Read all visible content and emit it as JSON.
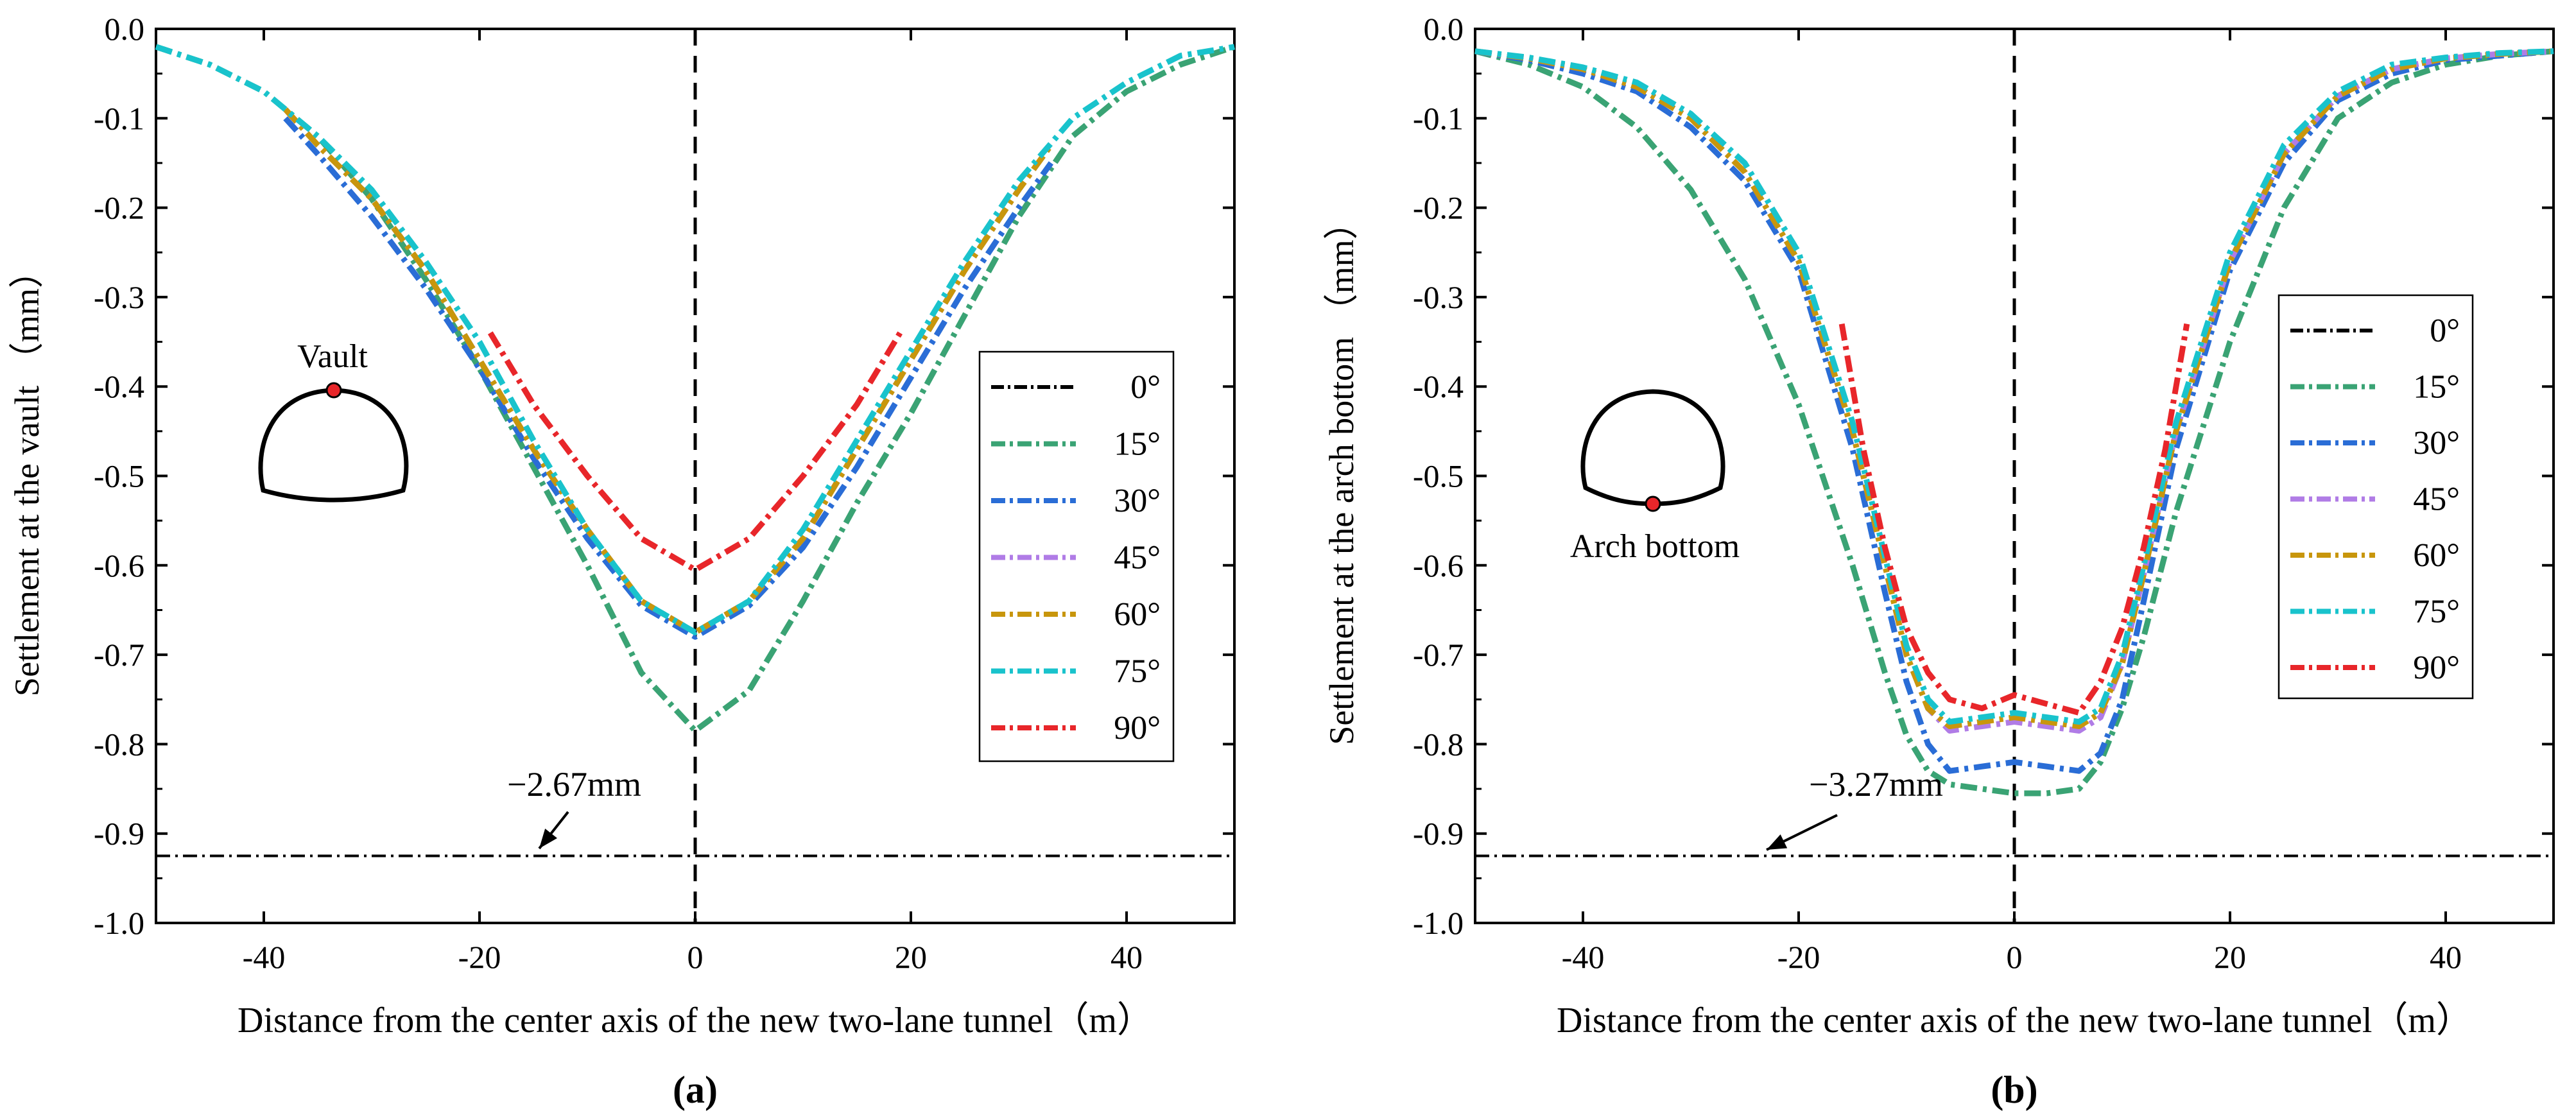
{
  "chart_data": [
    {
      "panel_label": "(a)",
      "type": "line",
      "xlabel": "Distance from the center axis of the new two-lane tunnel（m）",
      "ylabel": "Settlement at the vault （mm）",
      "xlim": [
        -50,
        50
      ],
      "ylim": [
        -1.0,
        0.0
      ],
      "xticks": [
        -40,
        -20,
        0,
        20,
        40
      ],
      "yticks": [
        0.0,
        -0.1,
        -0.2,
        -0.3,
        -0.4,
        -0.5,
        -0.6,
        -0.7,
        -0.8,
        -0.9,
        -1.0
      ],
      "ytick_labels": [
        "0.0",
        "-0.1",
        "-0.2",
        "-0.3",
        "-0.4",
        "-0.5",
        "-0.6",
        "-0.7",
        "-0.8",
        "-0.9",
        "-1.0"
      ],
      "legend_position": "right",
      "inset_label": "Vault",
      "threshold": {
        "value": -0.925,
        "label": "−2.67mm",
        "color": "#000000"
      },
      "series": [
        {
          "name": "0°",
          "color": "#000000",
          "x": [
            -50,
            50
          ],
          "y": [
            -0.925,
            -0.925
          ]
        },
        {
          "name": "15°",
          "color": "#3aa374",
          "x": [
            -50,
            -45,
            -40,
            -35,
            -30,
            -25,
            -20,
            -15,
            -10,
            -5,
            0,
            5,
            10,
            15,
            20,
            25,
            30,
            35,
            40,
            45,
            50
          ],
          "y": [
            -0.02,
            -0.04,
            -0.07,
            -0.12,
            -0.19,
            -0.28,
            -0.38,
            -0.49,
            -0.6,
            -0.72,
            -0.785,
            -0.74,
            -0.64,
            -0.53,
            -0.43,
            -0.32,
            -0.21,
            -0.12,
            -0.07,
            -0.04,
            -0.02
          ]
        },
        {
          "name": "30°",
          "color": "#2a6dd6",
          "x": [
            -38,
            -35,
            -30,
            -25,
            -20,
            -15,
            -10,
            -5,
            0,
            5,
            10,
            15,
            20,
            25,
            30,
            33
          ],
          "y": [
            -0.1,
            -0.14,
            -0.21,
            -0.29,
            -0.38,
            -0.48,
            -0.57,
            -0.645,
            -0.68,
            -0.645,
            -0.58,
            -0.49,
            -0.39,
            -0.29,
            -0.2,
            -0.15
          ]
        },
        {
          "name": "45°",
          "color": "#b07ce6",
          "x": [
            -38,
            -35,
            -30,
            -25,
            -20,
            -15,
            -10,
            -5,
            0,
            5,
            10,
            15,
            20,
            25,
            30,
            33
          ],
          "y": [
            -0.09,
            -0.13,
            -0.19,
            -0.27,
            -0.37,
            -0.47,
            -0.56,
            -0.64,
            -0.675,
            -0.64,
            -0.57,
            -0.47,
            -0.37,
            -0.27,
            -0.18,
            -0.13
          ]
        },
        {
          "name": "60°",
          "color": "#c8960c",
          "x": [
            -38,
            -35,
            -30,
            -25,
            -20,
            -15,
            -10,
            -5,
            0,
            5,
            10,
            15,
            20,
            25,
            30,
            33
          ],
          "y": [
            -0.09,
            -0.13,
            -0.19,
            -0.27,
            -0.37,
            -0.47,
            -0.56,
            -0.64,
            -0.675,
            -0.64,
            -0.57,
            -0.47,
            -0.37,
            -0.27,
            -0.18,
            -0.13
          ]
        },
        {
          "name": "75°",
          "color": "#19c3cc",
          "x": [
            -50,
            -45,
            -40,
            -35,
            -30,
            -25,
            -20,
            -15,
            -10,
            -5,
            0,
            5,
            10,
            15,
            20,
            25,
            30,
            35,
            40,
            45,
            50
          ],
          "y": [
            -0.02,
            -0.04,
            -0.07,
            -0.12,
            -0.18,
            -0.26,
            -0.35,
            -0.46,
            -0.56,
            -0.64,
            -0.675,
            -0.64,
            -0.56,
            -0.46,
            -0.36,
            -0.26,
            -0.17,
            -0.1,
            -0.06,
            -0.03,
            -0.02
          ]
        },
        {
          "name": "90°",
          "color": "#e8262a",
          "x": [
            -19,
            -15,
            -10,
            -5,
            0,
            5,
            10,
            15,
            19
          ],
          "y": [
            -0.34,
            -0.42,
            -0.5,
            -0.57,
            -0.605,
            -0.57,
            -0.5,
            -0.42,
            -0.34
          ]
        }
      ]
    },
    {
      "panel_label": "(b)",
      "type": "line",
      "xlabel": "Distance from the center axis of the new two-lane tunnel（m）",
      "ylabel": "Settlement at the arch bottom （mm）",
      "xlim": [
        -50,
        50
      ],
      "ylim": [
        -1.0,
        0.0
      ],
      "xticks": [
        -40,
        -20,
        0,
        20,
        40
      ],
      "yticks": [
        0.0,
        -0.1,
        -0.2,
        -0.3,
        -0.4,
        -0.5,
        -0.6,
        -0.7,
        -0.8,
        -0.9,
        -1.0
      ],
      "ytick_labels": [
        "0.0",
        "-0.1",
        "-0.2",
        "-0.3",
        "-0.4",
        "-0.5",
        "-0.6",
        "-0.7",
        "-0.8",
        "-0.9",
        "-1.0"
      ],
      "legend_position": "right",
      "inset_label": "Arch bottom",
      "threshold": {
        "value": -0.925,
        "label": "−3.27mm",
        "color": "#000000"
      },
      "series": [
        {
          "name": "0°",
          "color": "#000000",
          "x": [
            -50,
            50
          ],
          "y": [
            -0.925,
            -0.925
          ]
        },
        {
          "name": "15°",
          "color": "#3aa374",
          "x": [
            -50,
            -45,
            -40,
            -35,
            -30,
            -25,
            -20,
            -15,
            -12,
            -10,
            -8,
            -6,
            -3,
            0,
            3,
            6,
            8,
            10,
            12,
            15,
            20,
            25,
            30,
            35,
            40,
            45,
            50
          ],
          "y": [
            -0.025,
            -0.04,
            -0.065,
            -0.11,
            -0.18,
            -0.28,
            -0.42,
            -0.6,
            -0.72,
            -0.79,
            -0.83,
            -0.845,
            -0.85,
            -0.855,
            -0.855,
            -0.85,
            -0.82,
            -0.76,
            -0.68,
            -0.54,
            -0.35,
            -0.2,
            -0.1,
            -0.06,
            -0.04,
            -0.03,
            -0.025
          ]
        },
        {
          "name": "30°",
          "color": "#2a6dd6",
          "x": [
            -50,
            -45,
            -40,
            -35,
            -30,
            -25,
            -20,
            -15,
            -12,
            -10,
            -8,
            -6,
            -3,
            0,
            3,
            6,
            8,
            10,
            12,
            15,
            20,
            25,
            30,
            35,
            40,
            45,
            50
          ],
          "y": [
            -0.025,
            -0.035,
            -0.05,
            -0.07,
            -0.11,
            -0.17,
            -0.27,
            -0.47,
            -0.63,
            -0.73,
            -0.8,
            -0.83,
            -0.825,
            -0.82,
            -0.825,
            -0.83,
            -0.81,
            -0.75,
            -0.64,
            -0.47,
            -0.27,
            -0.15,
            -0.08,
            -0.05,
            -0.035,
            -0.03,
            -0.025
          ]
        },
        {
          "name": "45°",
          "color": "#b07ce6",
          "x": [
            -50,
            -45,
            -40,
            -35,
            -30,
            -25,
            -20,
            -15,
            -12,
            -10,
            -8,
            -6,
            -3,
            0,
            3,
            6,
            8,
            10,
            12,
            15,
            20,
            25,
            30,
            35,
            40,
            45,
            50
          ],
          "y": [
            -0.025,
            -0.033,
            -0.045,
            -0.065,
            -0.1,
            -0.16,
            -0.26,
            -0.45,
            -0.6,
            -0.7,
            -0.76,
            -0.785,
            -0.78,
            -0.775,
            -0.78,
            -0.785,
            -0.77,
            -0.71,
            -0.61,
            -0.45,
            -0.26,
            -0.14,
            -0.075,
            -0.045,
            -0.033,
            -0.028,
            -0.025
          ]
        },
        {
          "name": "60°",
          "color": "#c8960c",
          "x": [
            -50,
            -45,
            -40,
            -35,
            -30,
            -25,
            -20,
            -15,
            -12,
            -10,
            -8,
            -6,
            -3,
            0,
            3,
            6,
            8,
            10,
            12,
            15,
            20,
            25,
            30,
            35,
            40,
            45,
            50
          ],
          "y": [
            -0.025,
            -0.033,
            -0.045,
            -0.065,
            -0.1,
            -0.16,
            -0.26,
            -0.45,
            -0.6,
            -0.7,
            -0.76,
            -0.78,
            -0.775,
            -0.77,
            -0.775,
            -0.78,
            -0.765,
            -0.71,
            -0.61,
            -0.45,
            -0.26,
            -0.14,
            -0.075,
            -0.045,
            -0.033,
            -0.028,
            -0.025
          ]
        },
        {
          "name": "75°",
          "color": "#19c3cc",
          "x": [
            -50,
            -45,
            -40,
            -35,
            -30,
            -25,
            -20,
            -15,
            -12,
            -10,
            -8,
            -6,
            -3,
            0,
            3,
            6,
            8,
            10,
            12,
            15,
            20,
            25,
            30,
            35,
            40,
            45,
            50
          ],
          "y": [
            -0.025,
            -0.032,
            -0.043,
            -0.06,
            -0.095,
            -0.15,
            -0.25,
            -0.44,
            -0.59,
            -0.69,
            -0.75,
            -0.775,
            -0.77,
            -0.765,
            -0.77,
            -0.775,
            -0.76,
            -0.7,
            -0.6,
            -0.44,
            -0.25,
            -0.13,
            -0.07,
            -0.04,
            -0.032,
            -0.027,
            -0.025
          ]
        },
        {
          "name": "90°",
          "color": "#e8262a",
          "x": [
            -16,
            -14,
            -12,
            -10,
            -8,
            -6,
            -3,
            0,
            3,
            6,
            8,
            10,
            12,
            14,
            16
          ],
          "y": [
            -0.33,
            -0.47,
            -0.58,
            -0.67,
            -0.72,
            -0.75,
            -0.76,
            -0.745,
            -0.755,
            -0.765,
            -0.73,
            -0.67,
            -0.58,
            -0.47,
            -0.33
          ]
        }
      ]
    }
  ]
}
